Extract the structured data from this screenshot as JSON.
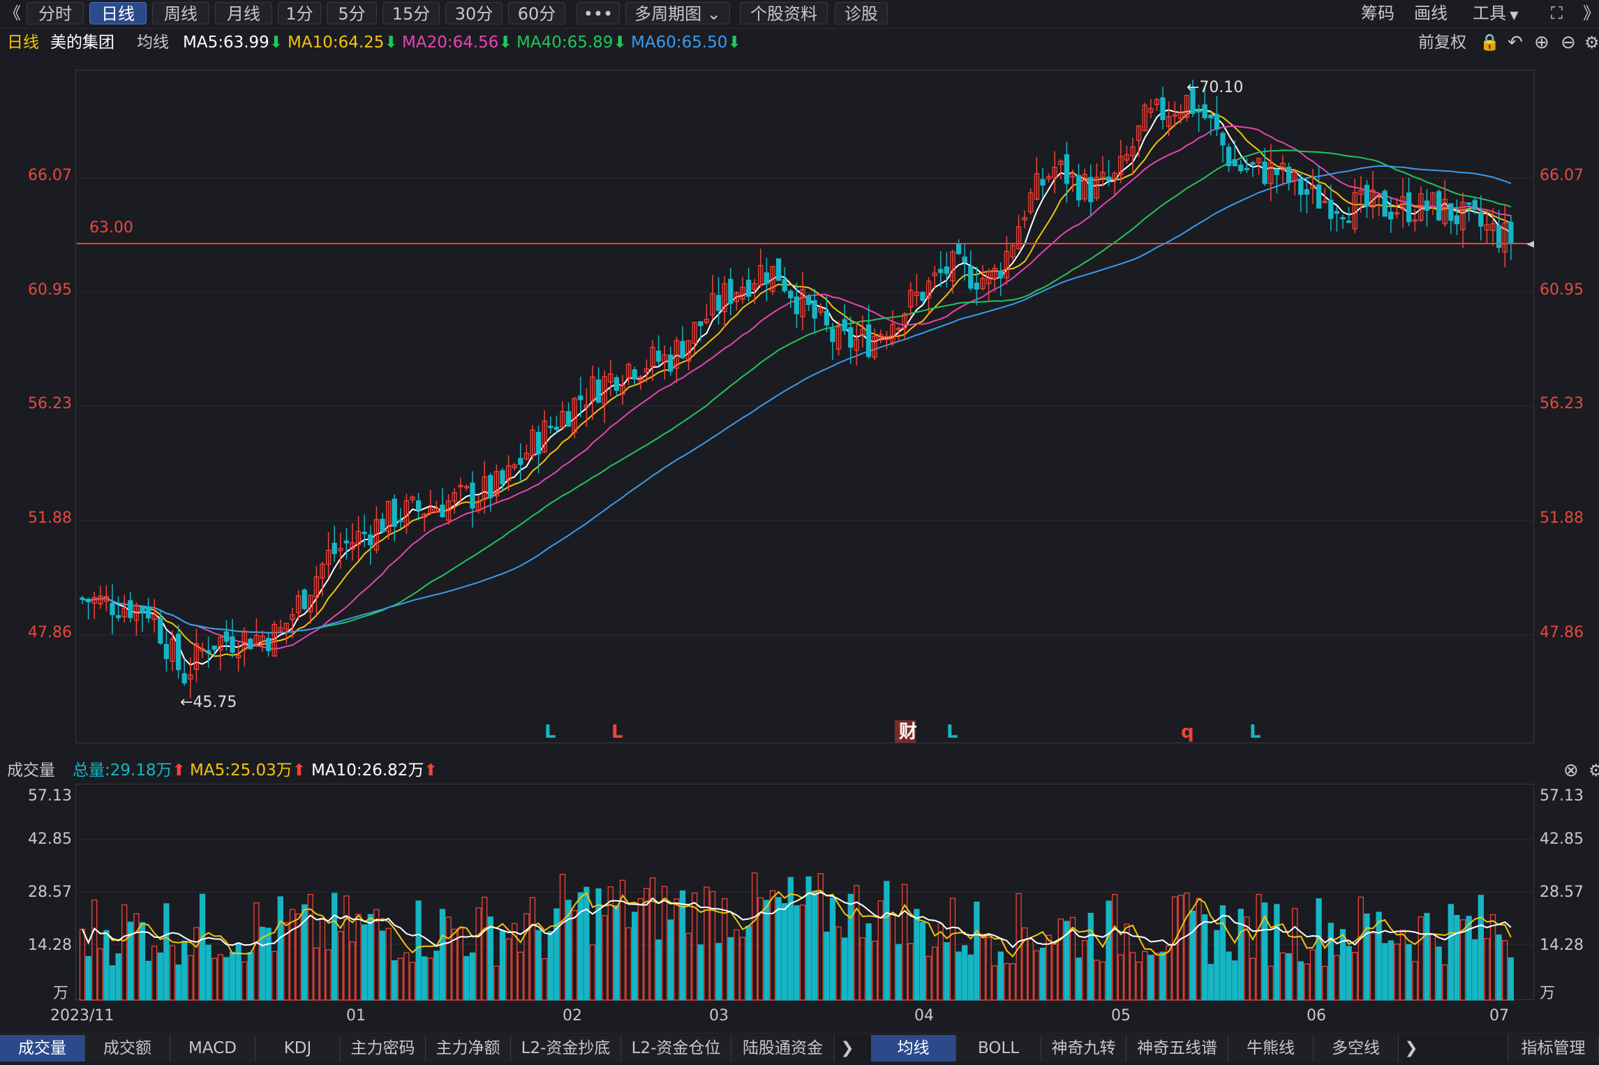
{
  "toolbar": {
    "collapse": "《",
    "tabs": [
      "分时",
      "日线",
      "周线",
      "月线",
      "1分",
      "5分",
      "15分",
      "30分",
      "60分"
    ],
    "active_tab": "日线",
    "more": "•••",
    "multi_period": "多周期图",
    "stock_info": "个股资料",
    "diagnose": "诊股",
    "right": [
      "筹码",
      "画线",
      "工具"
    ],
    "expand": "⛶",
    "nav_next": "》"
  },
  "info": {
    "period": "日线",
    "stock_name": "美的集团",
    "ma_label": "均线",
    "ma5": "MA5:63.99",
    "ma10": "MA10:64.25",
    "ma20": "MA20:64.56",
    "ma40": "MA40:65.89",
    "ma60": "MA60:65.50",
    "adjust": "前复权"
  },
  "colors": {
    "up": "#f0443a",
    "down": "#17b5c4",
    "ma5": "#ffffff",
    "ma10": "#f2c40f",
    "ma20": "#e645b4",
    "ma40": "#22c55e",
    "ma60": "#3a9bf0",
    "bg": "#1b1c21",
    "accent": "#2b4a8a"
  },
  "main_chart": {
    "y_ticks": [
      "66.07",
      "60.95",
      "56.23",
      "51.88",
      "47.86"
    ],
    "ref_line_label": "63.00",
    "high_label": "←70.10",
    "low_label": "←45.75",
    "markers": [
      {
        "text": "L",
        "color": "#17b5c4"
      },
      {
        "text": "L",
        "color": "#f0443a"
      },
      {
        "text": "财",
        "color": "#ffffff"
      },
      {
        "text": "L",
        "color": "#17b5c4"
      },
      {
        "text": "q",
        "color": "#f0443a"
      },
      {
        "text": "L",
        "color": "#17b5c4"
      }
    ]
  },
  "volume": {
    "title": "成交量",
    "total": "总量:29.18万",
    "ma5": "MA5:25.03万",
    "ma10": "MA10:26.82万",
    "y_ticks": [
      "57.13",
      "42.85",
      "28.57",
      "14.28",
      "万"
    ]
  },
  "x_axis": [
    "2023/11",
    "01",
    "02",
    "03",
    "04",
    "05",
    "06",
    "07"
  ],
  "bottom_tabs_left": [
    "成交量",
    "成交额",
    "MACD",
    "KDJ",
    "主力密码",
    "主力净额",
    "L2-资金抄底",
    "L2-资金仓位",
    "陆股通资金"
  ],
  "bottom_tabs_right": [
    "均线",
    "BOLL",
    "神奇九转",
    "神奇五线谱",
    "牛熊线",
    "多空线"
  ],
  "indicator_manage": "指标管理"
}
